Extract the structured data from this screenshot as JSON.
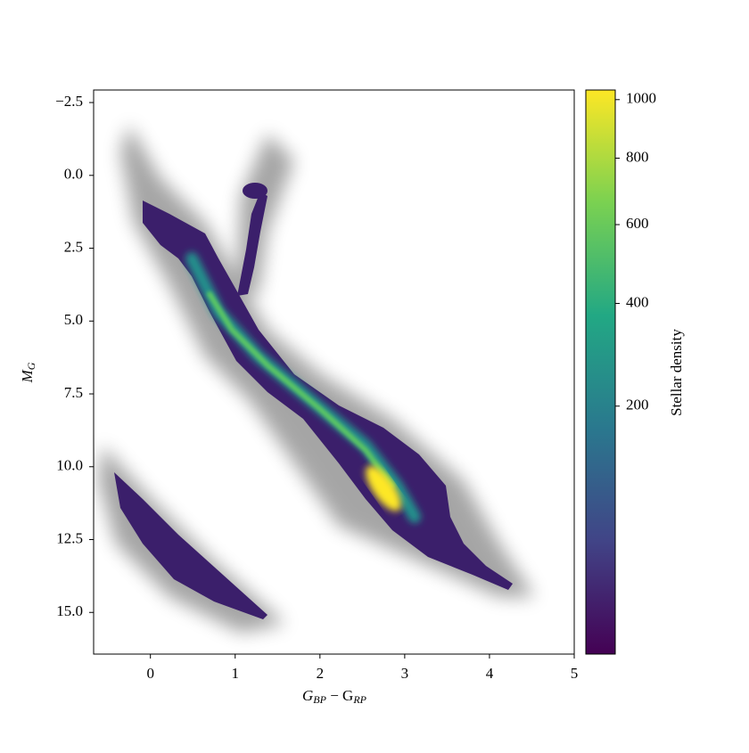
{
  "chart_data": {
    "type": "density",
    "xlabel": "G_BP − G_RP",
    "ylabel": "M_G",
    "xlim": [
      -0.67,
      5.0
    ],
    "xticks": [
      0,
      1,
      2,
      3,
      4,
      5
    ],
    "ylim": [
      -2.93,
      16.43
    ],
    "y_inverted": true,
    "yticks": [
      {
        "value": -2.5,
        "label": "−2.5"
      },
      {
        "value": 0,
        "label": "0.0"
      },
      2.5,
      {
        "value": 5,
        "label": "5.0"
      },
      7.5,
      {
        "value": 10,
        "label": "10.0"
      },
      12.5,
      {
        "value": 15,
        "label": "15.0"
      }
    ],
    "colorbar": {
      "label": "Stellar density",
      "scale": "sqrt",
      "clim": [
        0,
        1035
      ],
      "ticks": [
        200,
        400,
        600,
        800,
        1000
      ],
      "colormap": "viridis"
    }
  }
}
